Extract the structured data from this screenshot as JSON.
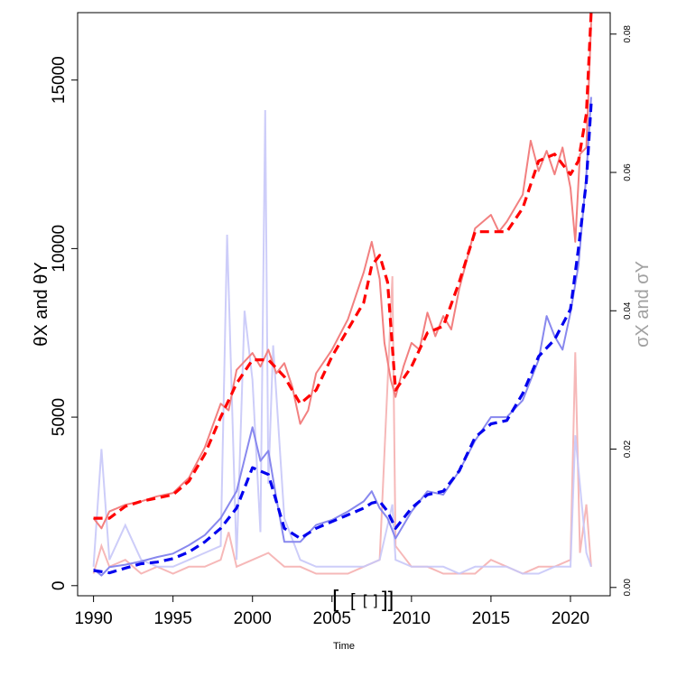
{
  "chart_data": {
    "type": "line",
    "title": "",
    "xlabel": "Time",
    "ylabel": "θX and θY",
    "y2label": "σX and σY",
    "xlim": [
      1989,
      2022.5
    ],
    "ylim": [
      -300,
      17000
    ],
    "y2lim": [
      -0.0012,
      0.0831
    ],
    "xticks": [
      1990,
      1995,
      2000,
      2005,
      2010,
      2015,
      2020
    ],
    "yticks": [
      0,
      5000,
      10000,
      15000
    ],
    "y2ticks": [
      0.0,
      0.02,
      0.04,
      0.06,
      0.08
    ],
    "y2ticklabels": [
      "0.00",
      "0.02",
      "0.04",
      "0.06",
      "0.08"
    ],
    "grid": false,
    "legend": "none",
    "colors": {
      "red_series": "#ff0000",
      "red_observed": "#f28080",
      "blue_series": "#0000ee",
      "blue_observed": "#8888ee",
      "red_vol": "#f5b0b0",
      "blue_vol": "#c8c8f8",
      "right_axis_text": "#a0a0a0"
    },
    "series": [
      {
        "role": "theta-X-smoothed",
        "style": "dashed",
        "color": "#ff0000",
        "x": [
          1990,
          1991,
          1992,
          1993,
          1994,
          1995,
          1996,
          1997,
          1998,
          1999,
          2000,
          2001,
          2002,
          2003,
          2004,
          2005,
          2006,
          2007,
          2007.5,
          2008,
          2008.5,
          2009,
          2010,
          2011,
          2012,
          2013,
          2014,
          2015,
          2016,
          2017,
          2018,
          2019,
          2020,
          2020.5,
          2021,
          2021.3
        ],
        "y": [
          2000,
          2000,
          2350,
          2500,
          2600,
          2700,
          3100,
          3900,
          5000,
          6000,
          6700,
          6700,
          6200,
          5400,
          5800,
          6800,
          7600,
          8400,
          9500,
          9800,
          9000,
          5800,
          6500,
          7500,
          7700,
          9000,
          10500,
          10500,
          10500,
          11200,
          12600,
          12800,
          12200,
          12600,
          14000,
          17000
        ]
      },
      {
        "role": "theta-X-observed",
        "style": "solid",
        "color": "#f28080",
        "x": [
          1990,
          1990.5,
          1991,
          1992,
          1993,
          1994,
          1995,
          1996,
          1997,
          1998,
          1998.5,
          1999,
          2000,
          2000.5,
          2001,
          2001.5,
          2002,
          2002.5,
          2003,
          2003.5,
          2004,
          2005,
          2006,
          2007,
          2007.5,
          2008,
          2008.3,
          2008.7,
          2009,
          2009.5,
          2010,
          2010.5,
          2011,
          2011.5,
          2012,
          2012.5,
          2013,
          2014,
          2015,
          2015.5,
          2016,
          2017,
          2017.5,
          2018,
          2018.5,
          2019,
          2019.5,
          2020,
          2020.3,
          2020.6,
          2021,
          2021.3
        ],
        "y": [
          2000,
          1700,
          2200,
          2400,
          2500,
          2650,
          2750,
          3200,
          4100,
          5400,
          5200,
          6400,
          6900,
          6500,
          7000,
          6300,
          6600,
          5900,
          4800,
          5200,
          6300,
          7000,
          7900,
          9300,
          10200,
          9100,
          7200,
          6100,
          5600,
          6500,
          7200,
          7000,
          8100,
          7400,
          8000,
          7600,
          8800,
          10600,
          11000,
          10500,
          10800,
          11600,
          13200,
          12300,
          12900,
          12200,
          13000,
          11800,
          10200,
          12800,
          13000,
          16700
        ]
      },
      {
        "role": "theta-Y-smoothed",
        "style": "dashed",
        "color": "#0000ee",
        "x": [
          1990,
          1991,
          1992,
          1993,
          1994,
          1995,
          1996,
          1997,
          1998,
          1999,
          2000,
          2001,
          2002,
          2003,
          2004,
          2005,
          2006,
          2007,
          2007.5,
          2008,
          2008.5,
          2009,
          2010,
          2011,
          2012,
          2013,
          2014,
          2015,
          2016,
          2017,
          2018,
          2019,
          2020,
          2020.5,
          2021,
          2021.3
        ],
        "y": [
          450,
          380,
          520,
          650,
          700,
          800,
          1000,
          1300,
          1700,
          2300,
          3500,
          3300,
          1700,
          1400,
          1700,
          1900,
          2100,
          2300,
          2450,
          2500,
          2200,
          1700,
          2300,
          2700,
          2800,
          3400,
          4400,
          4800,
          4900,
          5700,
          6800,
          7300,
          8200,
          10000,
          12000,
          14300
        ]
      },
      {
        "role": "theta-Y-observed",
        "style": "solid",
        "color": "#8888ee",
        "x": [
          1990,
          1990.5,
          1991,
          1992,
          1993,
          1994,
          1995,
          1996,
          1997,
          1998,
          1999,
          2000,
          2000.5,
          2001,
          2001.5,
          2002,
          2003,
          2004,
          2005,
          2006,
          2007,
          2007.5,
          2008,
          2008.5,
          2009,
          2010,
          2011,
          2012,
          2013,
          2014,
          2015,
          2016,
          2017,
          2018,
          2018.5,
          2019,
          2019.5,
          2020,
          2020.5,
          2021,
          2021.3
        ],
        "y": [
          500,
          300,
          550,
          620,
          720,
          850,
          950,
          1200,
          1500,
          2000,
          2800,
          4700,
          3700,
          4000,
          2600,
          1300,
          1300,
          1800,
          1950,
          2200,
          2500,
          2800,
          2300,
          2000,
          1400,
          2200,
          2800,
          2700,
          3400,
          4300,
          5000,
          5000,
          5500,
          6700,
          8000,
          7400,
          7000,
          8100,
          9500,
          12200,
          14500
        ]
      }
    ],
    "volatility_series": [
      {
        "role": "sigma-X",
        "color": "#f5b0b0",
        "x": [
          1990,
          1990.5,
          1991,
          1992,
          1993,
          1994,
          1995,
          1996,
          1997,
          1998,
          1998.5,
          1999,
          2000,
          2001,
          2002,
          2003,
          2004,
          2005,
          2006,
          2007,
          2008,
          2008.8,
          2009,
          2010,
          2011,
          2012,
          2013,
          2014,
          2015,
          2016,
          2017,
          2018,
          2019,
          2020,
          2020.3,
          2020.6,
          2021,
          2021.3
        ],
        "y": [
          0.002,
          0.006,
          0.003,
          0.004,
          0.002,
          0.003,
          0.002,
          0.003,
          0.003,
          0.004,
          0.008,
          0.003,
          0.004,
          0.005,
          0.003,
          0.003,
          0.002,
          0.002,
          0.002,
          0.003,
          0.004,
          0.045,
          0.006,
          0.003,
          0.003,
          0.002,
          0.002,
          0.002,
          0.004,
          0.003,
          0.002,
          0.003,
          0.003,
          0.004,
          0.034,
          0.005,
          0.012,
          0.003
        ]
      },
      {
        "role": "sigma-Y",
        "color": "#c8c8f8",
        "x": [
          1990,
          1990.5,
          1991,
          1992,
          1993,
          1994,
          1995,
          1996,
          1997,
          1998,
          1998.4,
          1999,
          1999.5,
          2000,
          2000.5,
          2000.8,
          2001,
          2001.3,
          2002,
          2003,
          2004,
          2005,
          2006,
          2007,
          2008,
          2008.8,
          2009,
          2010,
          2011,
          2012,
          2013,
          2014,
          2015,
          2016,
          2017,
          2018,
          2019,
          2020,
          2020.3,
          2021,
          2021.3
        ],
        "y": [
          0.003,
          0.02,
          0.004,
          0.009,
          0.004,
          0.003,
          0.003,
          0.004,
          0.005,
          0.006,
          0.051,
          0.004,
          0.04,
          0.03,
          0.008,
          0.069,
          0.015,
          0.035,
          0.01,
          0.004,
          0.003,
          0.003,
          0.003,
          0.003,
          0.004,
          0.012,
          0.004,
          0.003,
          0.003,
          0.003,
          0.002,
          0.003,
          0.003,
          0.003,
          0.002,
          0.002,
          0.003,
          0.003,
          0.022,
          0.005,
          0.003
        ]
      }
    ],
    "annotation_marks": [
      "[",
      "[",
      "[",
      "]",
      "]]"
    ]
  }
}
